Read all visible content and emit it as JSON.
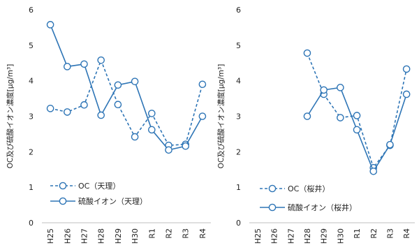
{
  "chart_data": [
    {
      "type": "line",
      "title": "",
      "xlabel": "",
      "ylabel": "OC及び硫酸イオン濃度[μg/m³]",
      "ylim": [
        0,
        6
      ],
      "yticks": [
        0,
        1,
        2,
        3,
        4,
        5,
        6
      ],
      "categories": [
        "H25",
        "H26",
        "H27",
        "H28",
        "H29",
        "H30",
        "R1",
        "R2",
        "R3",
        "R4"
      ],
      "grid": false,
      "legend_position": "bottom-left",
      "series": [
        {
          "name": "OC（天理）",
          "style": "dashed",
          "color": "#2e75b6",
          "values": [
            3.22,
            3.12,
            3.32,
            4.58,
            3.33,
            2.42,
            3.08,
            2.18,
            2.21,
            3.9
          ]
        },
        {
          "name": "硫酸イオン（天理）",
          "style": "solid",
          "color": "#2e75b6",
          "values": [
            5.58,
            4.4,
            4.47,
            3.03,
            3.88,
            3.98,
            2.62,
            2.05,
            2.16,
            3.0
          ]
        }
      ]
    },
    {
      "type": "line",
      "title": "",
      "xlabel": "",
      "ylabel": "OC及び硫酸イオン濃度[μg/m³]",
      "ylim": [
        0,
        6
      ],
      "yticks": [
        0,
        1,
        2,
        3,
        4,
        5,
        6
      ],
      "categories": [
        "H25",
        "H26",
        "H27",
        "H28",
        "H29",
        "H30",
        "R1",
        "R2",
        "R3",
        "R4"
      ],
      "grid": false,
      "legend_position": "bottom-left",
      "series": [
        {
          "name": "OC（桜井）",
          "style": "dashed",
          "color": "#2e75b6",
          "values": [
            null,
            null,
            null,
            4.78,
            3.62,
            2.96,
            3.02,
            1.55,
            2.18,
            4.33
          ]
        },
        {
          "name": "硫酸イオン（桜井）",
          "style": "solid",
          "color": "#2e75b6",
          "values": [
            null,
            null,
            null,
            3.0,
            3.74,
            3.81,
            2.62,
            1.45,
            2.2,
            3.62
          ]
        }
      ]
    }
  ]
}
